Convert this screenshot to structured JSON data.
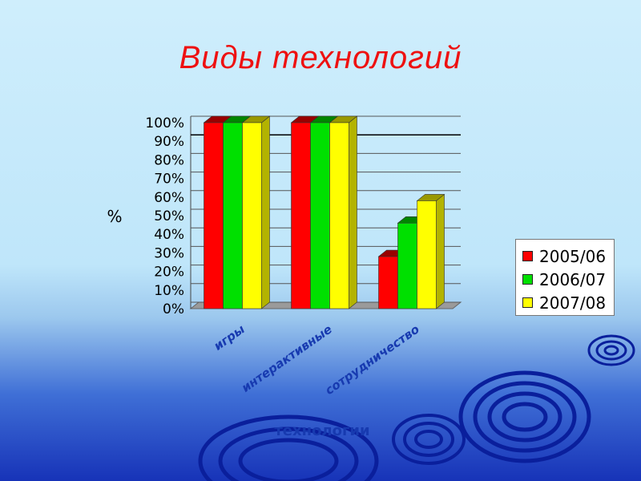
{
  "slide": {
    "title": "Виды технологий"
  },
  "colors": {
    "title": "#ee1111",
    "label_text": "#173ab0"
  },
  "chart_data": {
    "type": "bar",
    "bar_style": "3d",
    "categories": [
      "игры",
      "интерактивные",
      "сотрудничество"
    ],
    "series": [
      {
        "name": "2005/06",
        "color": "#ff0000",
        "values": [
          100,
          100,
          28
        ]
      },
      {
        "name": "2006/07",
        "color": "#00e000",
        "values": [
          100,
          100,
          46
        ]
      },
      {
        "name": "2007/08",
        "color": "#ffff00",
        "values": [
          100,
          100,
          58
        ]
      }
    ],
    "yticks": [
      "0%",
      "10%",
      "20%",
      "30%",
      "40%",
      "50%",
      "60%",
      "70%",
      "80%",
      "90%",
      "100%"
    ],
    "ylim": [
      0,
      100
    ],
    "ylabel": "%",
    "xlabel": "технологии",
    "grid": true,
    "legend_position": "right"
  }
}
